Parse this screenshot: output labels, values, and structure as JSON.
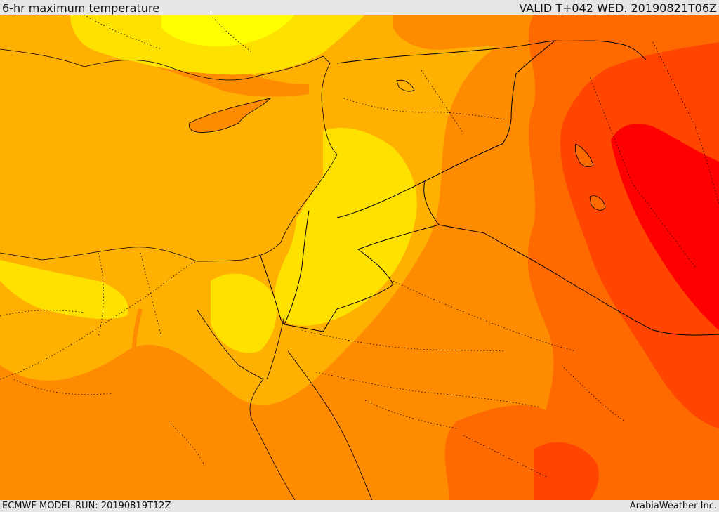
{
  "header": {
    "title": "6-hr maximum temperature",
    "valid": "VALID T+042 WED. 20190821T06Z"
  },
  "footer": {
    "model_run": "ECMWF MODEL RUN: 20190819T12Z",
    "credit": "ArabiaWeather Inc."
  },
  "palette": {
    "cool_yellow": "#ffff00",
    "yellow": "#ffe100",
    "gold": "#ffb000",
    "orange": "#ff8c00",
    "dark_orange": "#ff6a00",
    "red_orange": "#ff4500",
    "red": "#ff0000",
    "border": "#000000"
  }
}
